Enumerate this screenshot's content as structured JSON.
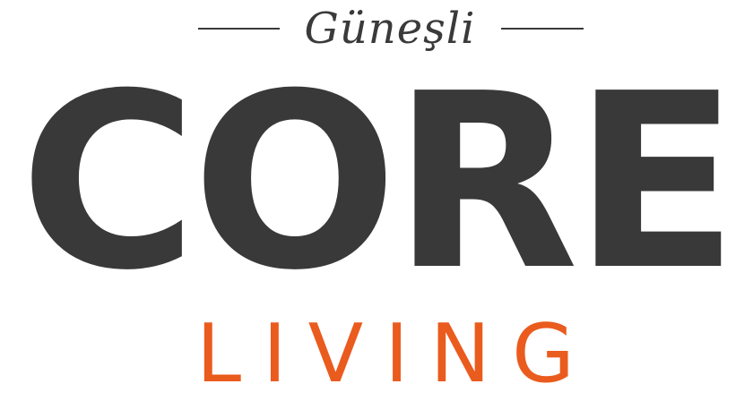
{
  "brand": {
    "script_name": "Güneşli",
    "wordmark": "CORE",
    "tagline": "LIVING"
  },
  "colors": {
    "wordmark": "#393939",
    "script": "#3a3a3a",
    "accent": "#ea5b1e",
    "background": "#ffffff"
  }
}
